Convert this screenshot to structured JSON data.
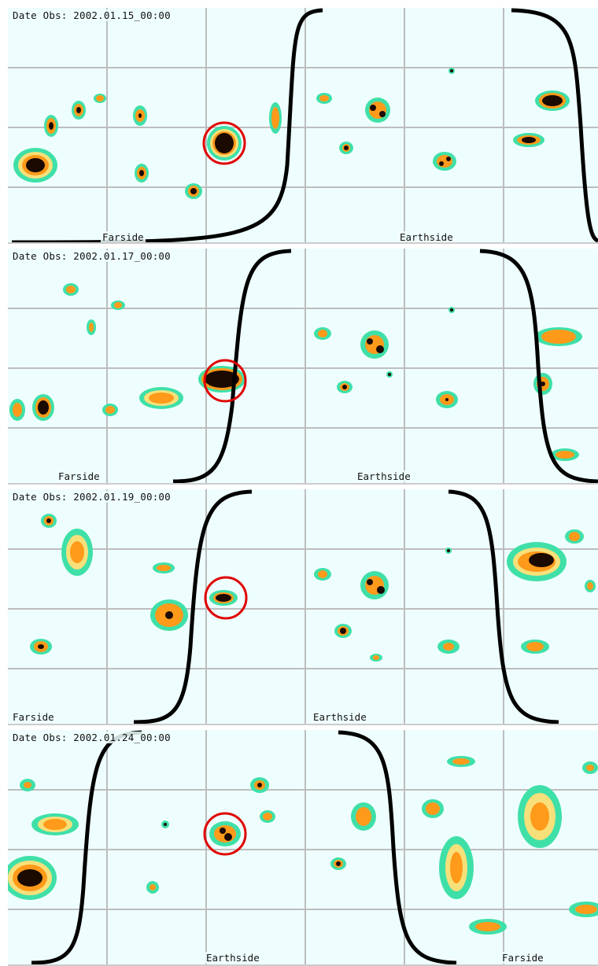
{
  "panels": [
    {
      "date": "Date Obs: 2002.01.15_00:00",
      "labels": [
        {
          "text": "Farside"
        },
        {
          "text": "Earthside"
        }
      ]
    },
    {
      "date": "Date Obs: 2002.01.17_00:00",
      "labels": [
        {
          "text": "Farside"
        },
        {
          "text": "Earthside"
        }
      ]
    },
    {
      "date": "Date Obs: 2002.01.19_00:00",
      "labels": [
        {
          "text": "Farside"
        },
        {
          "text": "Earthside"
        }
      ]
    },
    {
      "date": "Date Obs: 2002.01.24_00:00",
      "labels": [
        {
          "text": "Earthside"
        },
        {
          "text": "Farside"
        }
      ]
    }
  ],
  "colors": {
    "background": "#eefefe",
    "grid": "#bdbdbd",
    "contour_outer": "#3fe0a8",
    "contour_mid": "#f7e07a",
    "contour_inner": "#ff9a1a",
    "core": "#1a0a00",
    "circle": "#e00000",
    "limb": "#000000"
  }
}
